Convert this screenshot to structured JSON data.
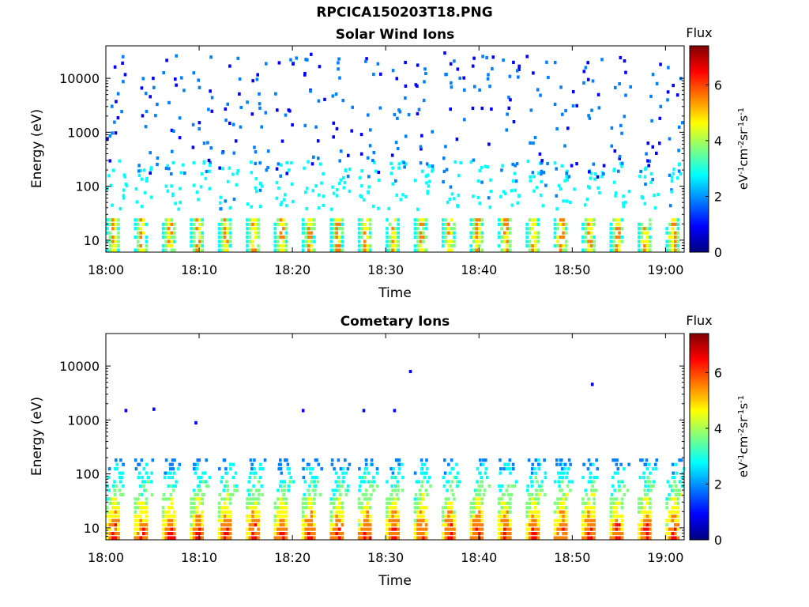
{
  "figure": {
    "title": "RPCICA150203T18.PNG"
  },
  "colormap": [
    "#00007f",
    "#0000ff",
    "#007fff",
    "#00ffff",
    "#7fff7f",
    "#ffff00",
    "#ff7f00",
    "#ff0000",
    "#7f0000"
  ],
  "chart_data": [
    {
      "type": "heatmap",
      "title": "Solar Wind Ions",
      "xlabel": "Time",
      "ylabel": "Energy (eV)",
      "x_ticks": [
        "18:00",
        "18:10",
        "18:20",
        "18:30",
        "18:40",
        "18:50",
        "19:00"
      ],
      "x_range": [
        "18:00",
        "19:02"
      ],
      "y_scale": "log",
      "y_ticks": [
        10,
        100,
        1000,
        10000
      ],
      "y_tick_labels": [
        "10",
        "100",
        "1000",
        "10000"
      ],
      "y_range": [
        6,
        40000
      ],
      "colorbar": {
        "title": "Flux",
        "range": [
          0,
          7.4
        ],
        "ticks": [
          0,
          2,
          4,
          6
        ],
        "tick_labels": [
          "0",
          "2",
          "4",
          "6"
        ],
        "label": "eV-1cm-2sr-1s-1"
      },
      "pattern": {
        "sweep_period_min": 3.0,
        "first_sweep_min": 0.0,
        "low_band_eV": [
          7,
          28
        ],
        "peak_flux": 6.6,
        "scatter_max_eV": 35000
      }
    },
    {
      "type": "heatmap",
      "title": "Cometary Ions",
      "xlabel": "Time",
      "ylabel": "Energy (eV)",
      "x_ticks": [
        "18:00",
        "18:10",
        "18:20",
        "18:30",
        "18:40",
        "18:50",
        "19:00"
      ],
      "x_range": [
        "18:00",
        "19:02"
      ],
      "y_scale": "log",
      "y_ticks": [
        10,
        100,
        1000,
        10000
      ],
      "y_tick_labels": [
        "10",
        "100",
        "1000",
        "10000"
      ],
      "y_range": [
        6,
        40000
      ],
      "colorbar": {
        "title": "Flux",
        "range": [
          0,
          7.4
        ],
        "ticks": [
          0,
          2,
          4,
          6
        ],
        "tick_labels": [
          "0",
          "2",
          "4",
          "6"
        ],
        "label": "eV-1cm-2sr-1s-1"
      },
      "pattern": {
        "sweep_period_min": 3.0,
        "first_sweep_min": 0.0,
        "low_band_eV": [
          7,
          200
        ],
        "peak_flux": 7.2,
        "isolated_points": [
          {
            "t": 2.0,
            "e": 1600
          },
          {
            "t": 5.0,
            "e": 1700
          },
          {
            "t": 9.5,
            "e": 950
          },
          {
            "t": 21.0,
            "e": 1600
          },
          {
            "t": 27.5,
            "e": 1600
          },
          {
            "t": 30.8,
            "e": 1600
          },
          {
            "t": 32.5,
            "e": 8500
          },
          {
            "t": 52.0,
            "e": 4900
          }
        ]
      }
    }
  ]
}
